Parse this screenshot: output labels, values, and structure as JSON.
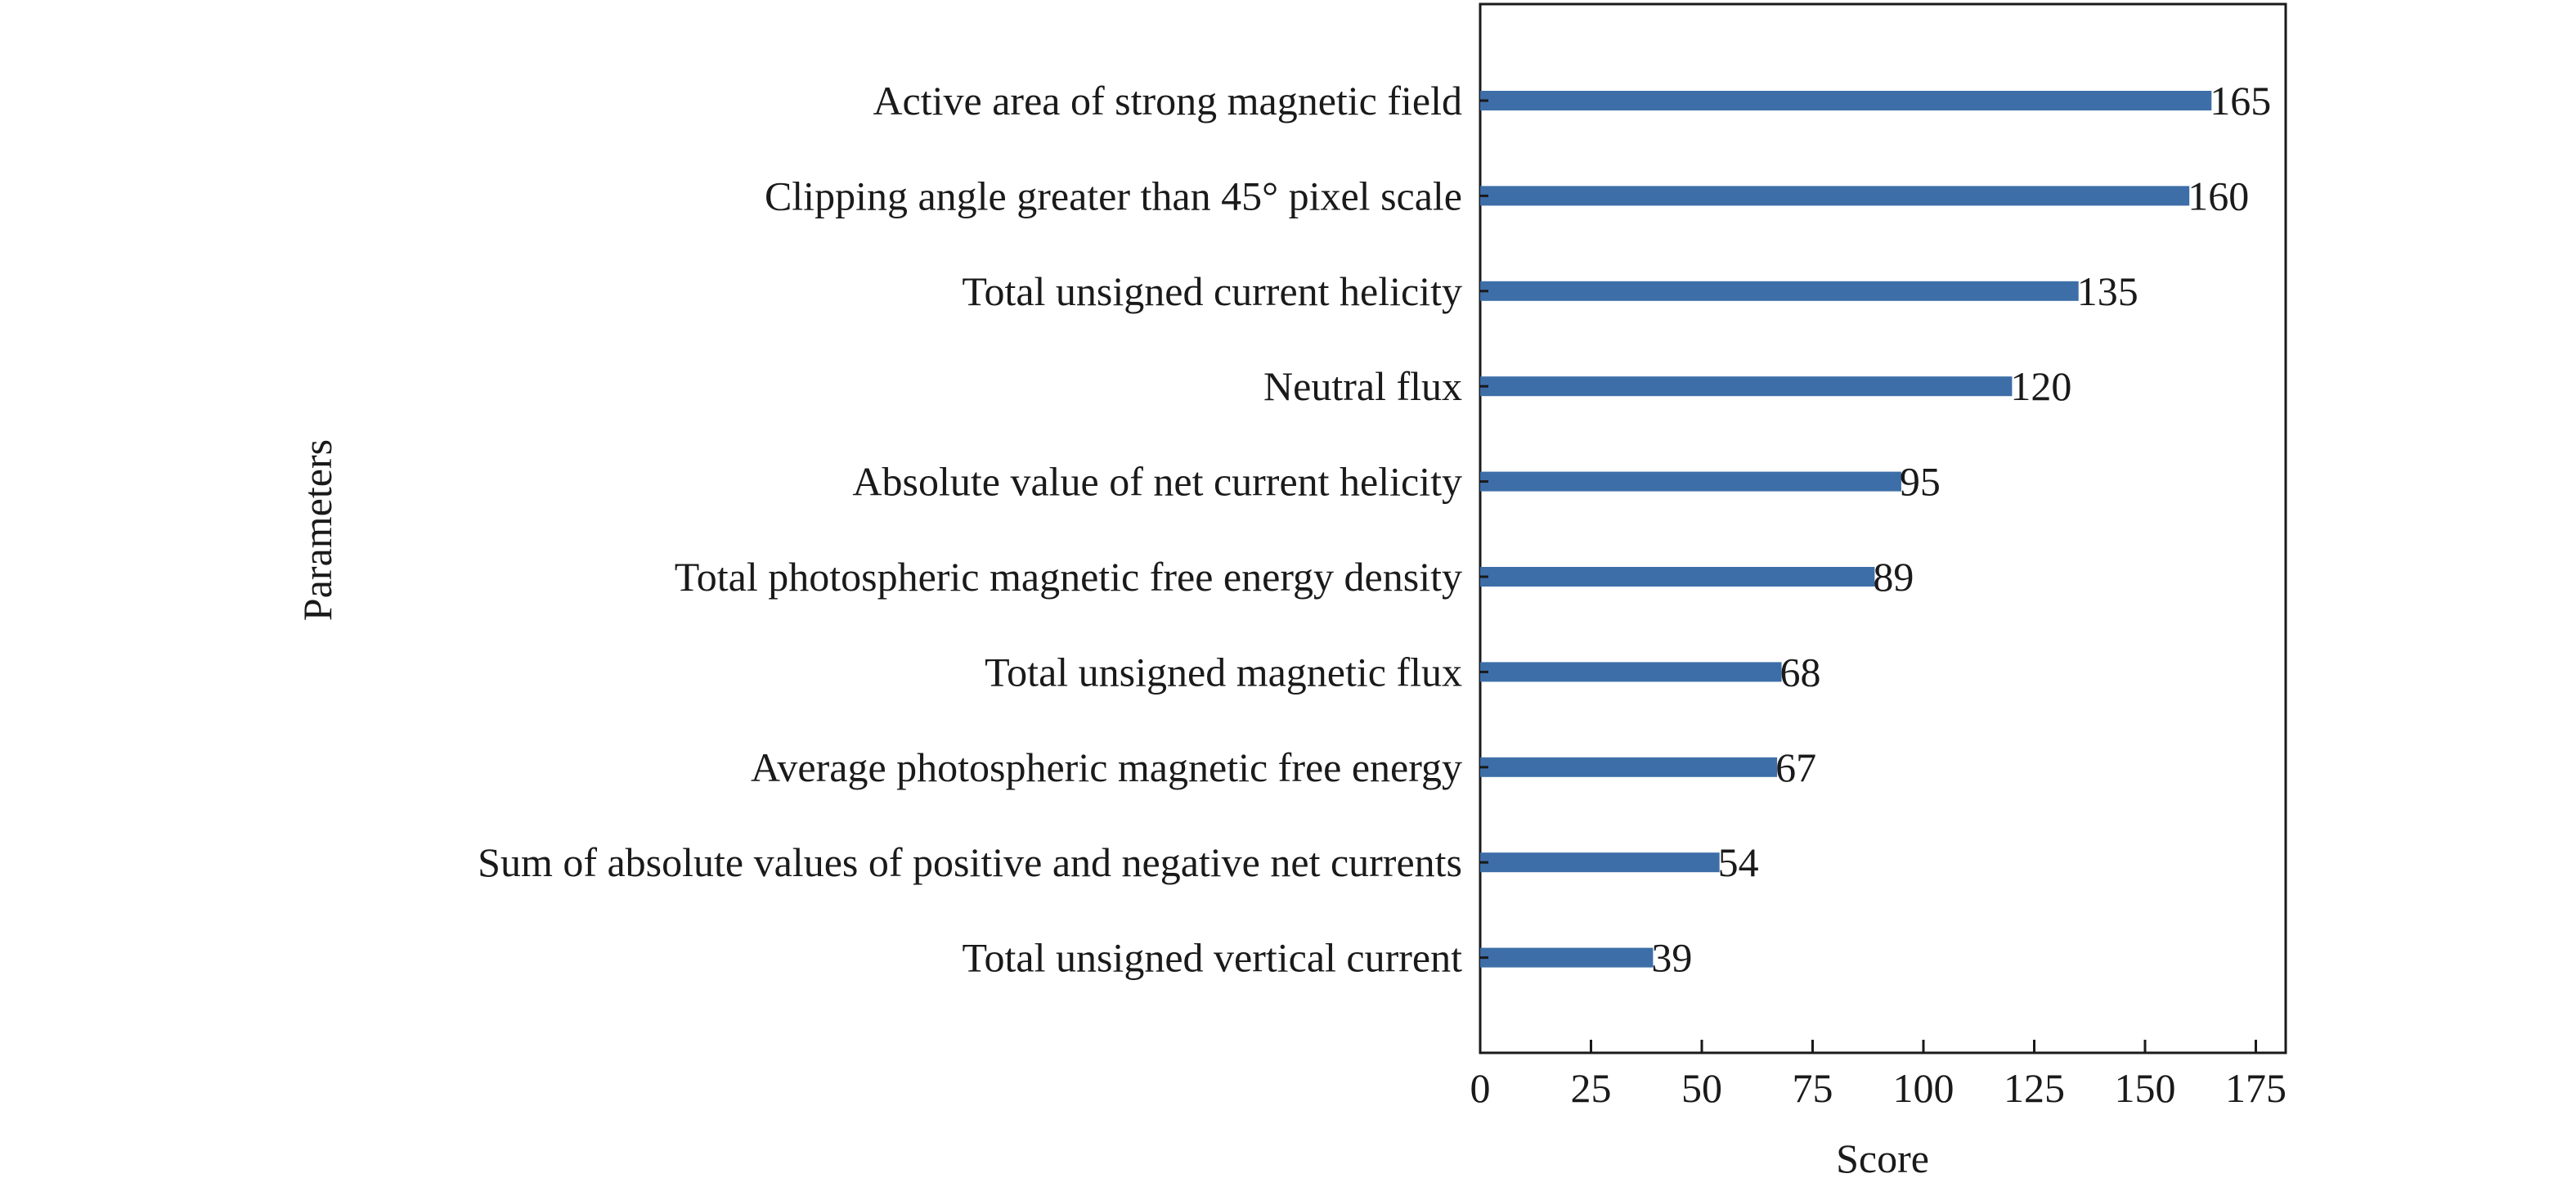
{
  "chart_data": {
    "type": "bar",
    "orientation": "horizontal",
    "categories": [
      "Active area of strong magnetic field",
      "Clipping angle greater than 45° pixel scale",
      "Total unsigned current helicity",
      "Neutral flux",
      "Absolute value of net current helicity",
      "Total photospheric magnetic free energy density",
      "Total unsigned magnetic flux",
      "Average photospheric magnetic free energy",
      "Sum of absolute values of positive and negative net currents",
      "Total unsigned vertical current"
    ],
    "values": [
      165,
      160,
      135,
      120,
      95,
      89,
      68,
      67,
      54,
      39
    ],
    "data_labels": [
      "165",
      "160",
      "135",
      "120",
      "95",
      "89",
      "68",
      "67",
      "54",
      "39"
    ],
    "xlabel": "Score",
    "ylabel": "Parameters",
    "xlim": [
      0,
      180
    ],
    "xticks": [
      0,
      25,
      50,
      75,
      100,
      125,
      150,
      175
    ],
    "xtick_labels": [
      "0",
      "25",
      "50",
      "75",
      "100",
      "125",
      "150",
      "175"
    ],
    "grid": false,
    "legend": "none",
    "bar_color": "#3d6ea8"
  }
}
